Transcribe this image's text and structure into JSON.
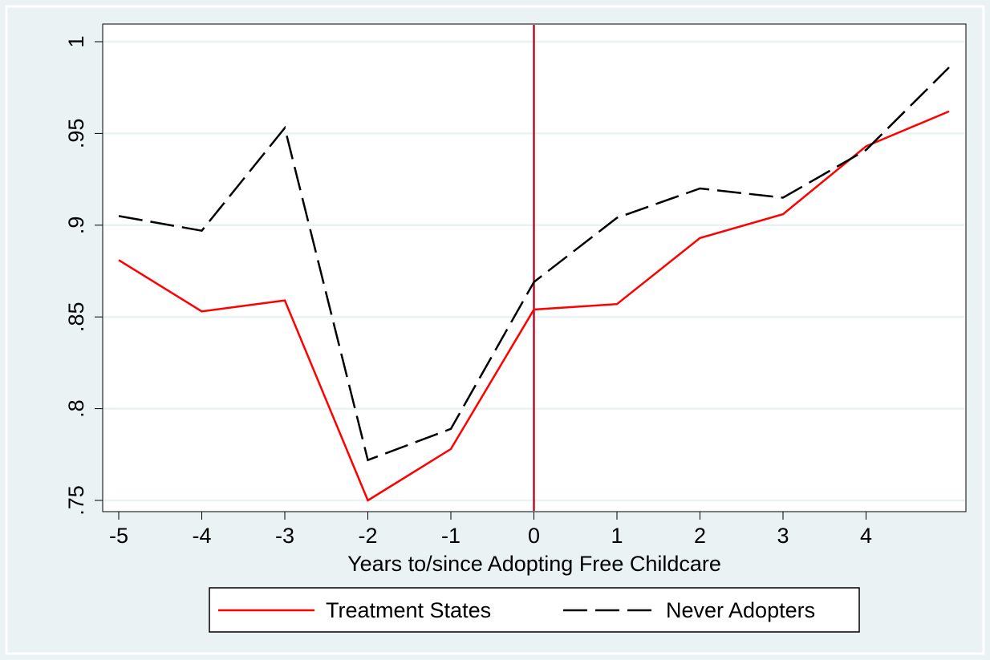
{
  "chart_data": {
    "type": "line",
    "title": "",
    "xlabel": "Years to/since Adopting Free Childcare",
    "ylabel": "",
    "x": [
      -5,
      -4,
      -3,
      -2,
      -1,
      0,
      1,
      2,
      3,
      4,
      5
    ],
    "x_ticks": [
      -5,
      -4,
      -3,
      -2,
      -1,
      0,
      1,
      2,
      3,
      4
    ],
    "x_tick_labels": [
      "-5",
      "-4",
      "-3",
      "-2",
      "-1",
      "0",
      "1",
      "2",
      "3",
      "4"
    ],
    "y_ticks": [
      0.75,
      0.8,
      0.85,
      0.9,
      0.95,
      1
    ],
    "y_tick_labels": [
      ".75",
      ".8",
      ".85",
      ".9",
      ".95",
      "1"
    ],
    "xlim": [
      -5,
      5
    ],
    "ylim": [
      0.75,
      1
    ],
    "grid": true,
    "reference_line": {
      "x": 0,
      "color": "#b3112e"
    },
    "legend_position": "bottom",
    "series": [
      {
        "name": "Treatment States",
        "color": "#ff0000",
        "dash": "solid",
        "values": [
          0.881,
          0.853,
          0.859,
          0.75,
          0.778,
          0.854,
          0.857,
          0.893,
          0.906,
          0.943,
          0.962
        ]
      },
      {
        "name": "Never Adopters",
        "color": "#000000",
        "dash": "longdash",
        "values": [
          0.905,
          0.897,
          0.953,
          0.772,
          0.789,
          0.869,
          0.904,
          0.92,
          0.915,
          0.941,
          0.986
        ]
      }
    ],
    "colors": {
      "page_background": "#eaf2f3",
      "plot_background": "#ffffff",
      "gridline": "#eaf2f3"
    }
  }
}
